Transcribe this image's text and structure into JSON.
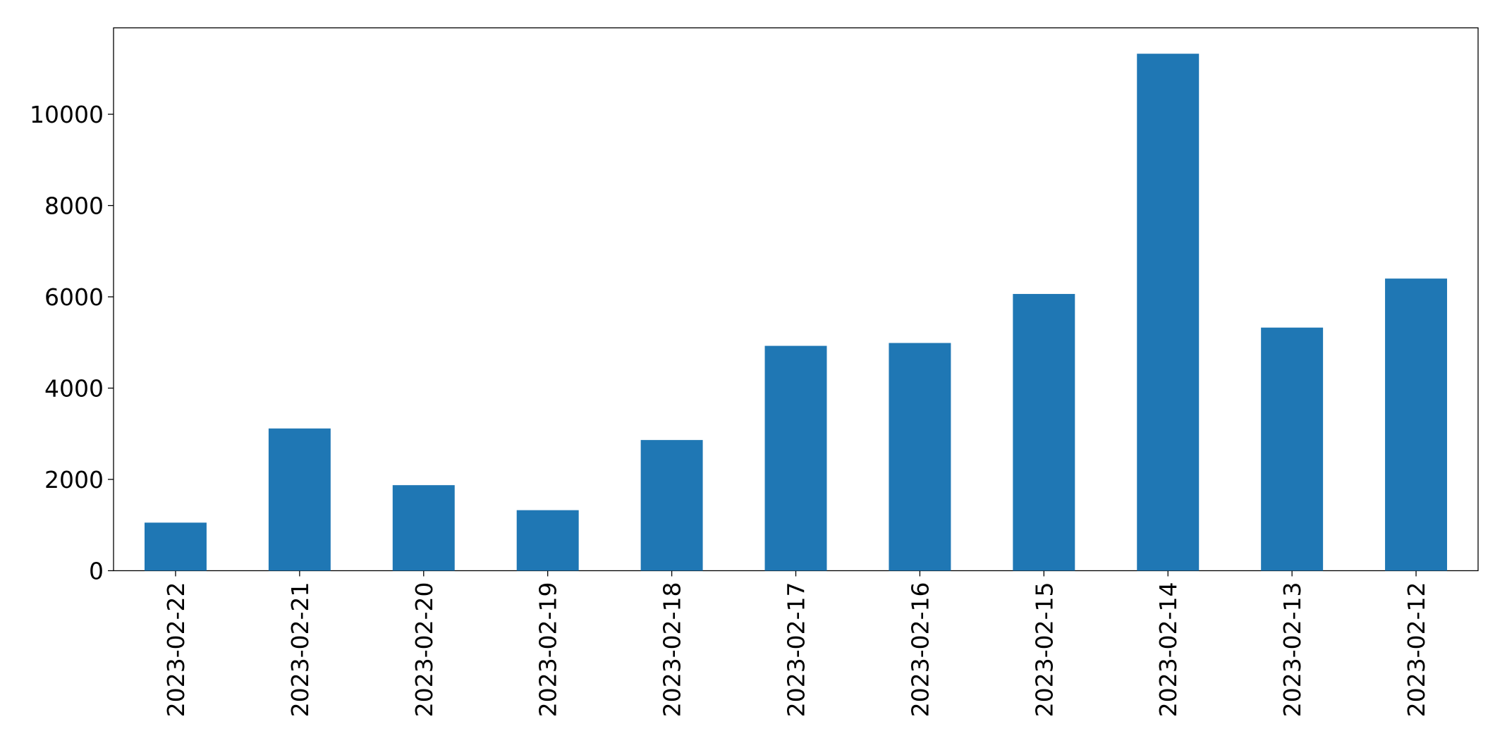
{
  "chart_data": {
    "type": "bar",
    "categories": [
      "2023-02-22",
      "2023-02-21",
      "2023-02-20",
      "2023-02-19",
      "2023-02-18",
      "2023-02-17",
      "2023-02-16",
      "2023-02-15",
      "2023-02-14",
      "2023-02-13",
      "2023-02-12"
    ],
    "values": [
      1053,
      3116,
      1874,
      1326,
      2863,
      4926,
      4989,
      6063,
      11326,
      5326,
      6400
    ],
    "color": "#1f77b4",
    "ylim": [
      0,
      11893
    ],
    "yticks": [
      0,
      2000,
      4000,
      6000,
      8000,
      10000
    ],
    "grid": false
  }
}
